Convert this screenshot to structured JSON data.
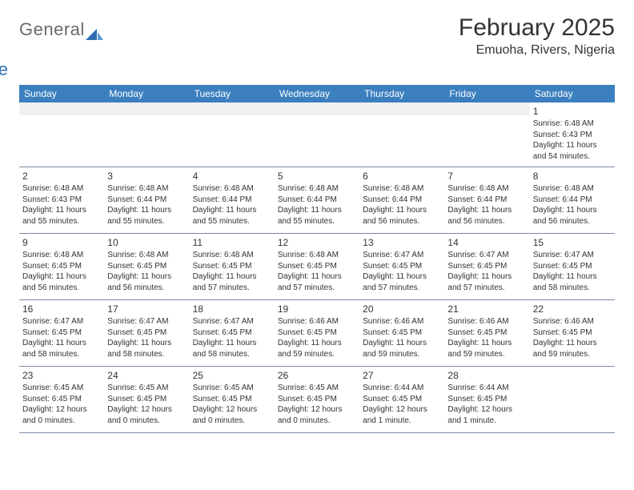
{
  "logo": {
    "text_general": "General",
    "text_blue": "Blue",
    "mark_color": "#2f6fb0"
  },
  "header": {
    "month_title": "February 2025",
    "location": "Emuoha, Rivers, Nigeria"
  },
  "colors": {
    "header_bg": "#3b7fbf",
    "header_text": "#ffffff",
    "grid_line": "#7a8aa0",
    "blank_bg": "#f0f0f0",
    "text": "#333333",
    "logo_gray": "#6a6a6a",
    "logo_blue": "#2f6fb0",
    "page_bg": "#ffffff"
  },
  "day_names": [
    "Sunday",
    "Monday",
    "Tuesday",
    "Wednesday",
    "Thursday",
    "Friday",
    "Saturday"
  ],
  "weeks": [
    [
      null,
      null,
      null,
      null,
      null,
      null,
      {
        "n": "1",
        "sunrise": "Sunrise: 6:48 AM",
        "sunset": "Sunset: 6:43 PM",
        "daylight": "Daylight: 11 hours and 54 minutes."
      }
    ],
    [
      {
        "n": "2",
        "sunrise": "Sunrise: 6:48 AM",
        "sunset": "Sunset: 6:43 PM",
        "daylight": "Daylight: 11 hours and 55 minutes."
      },
      {
        "n": "3",
        "sunrise": "Sunrise: 6:48 AM",
        "sunset": "Sunset: 6:44 PM",
        "daylight": "Daylight: 11 hours and 55 minutes."
      },
      {
        "n": "4",
        "sunrise": "Sunrise: 6:48 AM",
        "sunset": "Sunset: 6:44 PM",
        "daylight": "Daylight: 11 hours and 55 minutes."
      },
      {
        "n": "5",
        "sunrise": "Sunrise: 6:48 AM",
        "sunset": "Sunset: 6:44 PM",
        "daylight": "Daylight: 11 hours and 55 minutes."
      },
      {
        "n": "6",
        "sunrise": "Sunrise: 6:48 AM",
        "sunset": "Sunset: 6:44 PM",
        "daylight": "Daylight: 11 hours and 56 minutes."
      },
      {
        "n": "7",
        "sunrise": "Sunrise: 6:48 AM",
        "sunset": "Sunset: 6:44 PM",
        "daylight": "Daylight: 11 hours and 56 minutes."
      },
      {
        "n": "8",
        "sunrise": "Sunrise: 6:48 AM",
        "sunset": "Sunset: 6:44 PM",
        "daylight": "Daylight: 11 hours and 56 minutes."
      }
    ],
    [
      {
        "n": "9",
        "sunrise": "Sunrise: 6:48 AM",
        "sunset": "Sunset: 6:45 PM",
        "daylight": "Daylight: 11 hours and 56 minutes."
      },
      {
        "n": "10",
        "sunrise": "Sunrise: 6:48 AM",
        "sunset": "Sunset: 6:45 PM",
        "daylight": "Daylight: 11 hours and 56 minutes."
      },
      {
        "n": "11",
        "sunrise": "Sunrise: 6:48 AM",
        "sunset": "Sunset: 6:45 PM",
        "daylight": "Daylight: 11 hours and 57 minutes."
      },
      {
        "n": "12",
        "sunrise": "Sunrise: 6:48 AM",
        "sunset": "Sunset: 6:45 PM",
        "daylight": "Daylight: 11 hours and 57 minutes."
      },
      {
        "n": "13",
        "sunrise": "Sunrise: 6:47 AM",
        "sunset": "Sunset: 6:45 PM",
        "daylight": "Daylight: 11 hours and 57 minutes."
      },
      {
        "n": "14",
        "sunrise": "Sunrise: 6:47 AM",
        "sunset": "Sunset: 6:45 PM",
        "daylight": "Daylight: 11 hours and 57 minutes."
      },
      {
        "n": "15",
        "sunrise": "Sunrise: 6:47 AM",
        "sunset": "Sunset: 6:45 PM",
        "daylight": "Daylight: 11 hours and 58 minutes."
      }
    ],
    [
      {
        "n": "16",
        "sunrise": "Sunrise: 6:47 AM",
        "sunset": "Sunset: 6:45 PM",
        "daylight": "Daylight: 11 hours and 58 minutes."
      },
      {
        "n": "17",
        "sunrise": "Sunrise: 6:47 AM",
        "sunset": "Sunset: 6:45 PM",
        "daylight": "Daylight: 11 hours and 58 minutes."
      },
      {
        "n": "18",
        "sunrise": "Sunrise: 6:47 AM",
        "sunset": "Sunset: 6:45 PM",
        "daylight": "Daylight: 11 hours and 58 minutes."
      },
      {
        "n": "19",
        "sunrise": "Sunrise: 6:46 AM",
        "sunset": "Sunset: 6:45 PM",
        "daylight": "Daylight: 11 hours and 59 minutes."
      },
      {
        "n": "20",
        "sunrise": "Sunrise: 6:46 AM",
        "sunset": "Sunset: 6:45 PM",
        "daylight": "Daylight: 11 hours and 59 minutes."
      },
      {
        "n": "21",
        "sunrise": "Sunrise: 6:46 AM",
        "sunset": "Sunset: 6:45 PM",
        "daylight": "Daylight: 11 hours and 59 minutes."
      },
      {
        "n": "22",
        "sunrise": "Sunrise: 6:46 AM",
        "sunset": "Sunset: 6:45 PM",
        "daylight": "Daylight: 11 hours and 59 minutes."
      }
    ],
    [
      {
        "n": "23",
        "sunrise": "Sunrise: 6:45 AM",
        "sunset": "Sunset: 6:45 PM",
        "daylight": "Daylight: 12 hours and 0 minutes."
      },
      {
        "n": "24",
        "sunrise": "Sunrise: 6:45 AM",
        "sunset": "Sunset: 6:45 PM",
        "daylight": "Daylight: 12 hours and 0 minutes."
      },
      {
        "n": "25",
        "sunrise": "Sunrise: 6:45 AM",
        "sunset": "Sunset: 6:45 PM",
        "daylight": "Daylight: 12 hours and 0 minutes."
      },
      {
        "n": "26",
        "sunrise": "Sunrise: 6:45 AM",
        "sunset": "Sunset: 6:45 PM",
        "daylight": "Daylight: 12 hours and 0 minutes."
      },
      {
        "n": "27",
        "sunrise": "Sunrise: 6:44 AM",
        "sunset": "Sunset: 6:45 PM",
        "daylight": "Daylight: 12 hours and 1 minute."
      },
      {
        "n": "28",
        "sunrise": "Sunrise: 6:44 AM",
        "sunset": "Sunset: 6:45 PM",
        "daylight": "Daylight: 12 hours and 1 minute."
      },
      null
    ]
  ],
  "typography": {
    "month_title_size": 30,
    "location_size": 16,
    "day_header_size": 12,
    "daynum_size": 12,
    "info_size": 10
  }
}
